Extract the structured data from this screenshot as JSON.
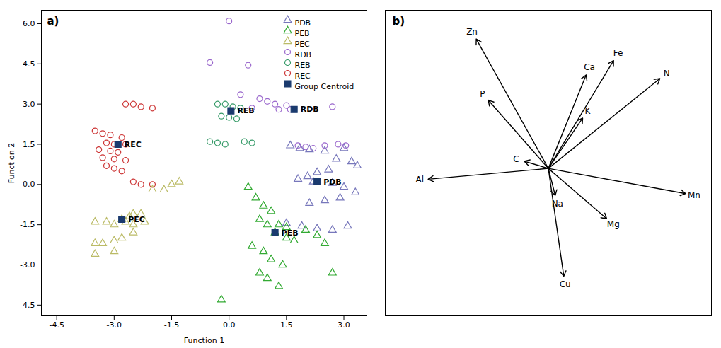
{
  "chart_data": [
    {
      "type": "scatter",
      "title": "a)",
      "xlabel": "Function 1",
      "ylabel": "Function 2",
      "xlim": [
        -4.9,
        3.6
      ],
      "ylim": [
        -4.9,
        6.5
      ],
      "xticks": [
        -4.5,
        {
          "value": -3,
          "label": "-3.0"
        },
        -1.5,
        {
          "value": 0,
          "label": "0.0"
        },
        1.5,
        {
          "value": 3,
          "label": "3.0"
        }
      ],
      "yticks": [
        -4.5,
        {
          "value": -3,
          "label": "-3.0"
        },
        -1.5,
        {
          "value": 0,
          "label": "0.0"
        },
        1.5,
        {
          "value": 3,
          "label": "3.0"
        },
        4.5,
        {
          "value": 6,
          "label": "6.0"
        }
      ],
      "legend": "upper right",
      "series": [
        {
          "name": "PDB",
          "color": "#7777bb",
          "marker": "triangle",
          "values": [
            [
              1.6,
              1.45
            ],
            [
              1.85,
              1.35
            ],
            [
              2.1,
              1.3
            ],
            [
              2.5,
              1.25
            ],
            [
              3.0,
              1.35
            ],
            [
              2.8,
              0.95
            ],
            [
              3.2,
              0.85
            ],
            [
              3.35,
              0.7
            ],
            [
              2.6,
              0.55
            ],
            [
              2.3,
              0.45
            ],
            [
              2.05,
              0.3
            ],
            [
              1.8,
              0.2
            ],
            [
              2.2,
              0.1
            ],
            [
              2.7,
              0.05
            ],
            [
              3.0,
              -0.1
            ],
            [
              3.3,
              -0.3
            ],
            [
              2.9,
              -0.5
            ],
            [
              2.5,
              -0.6
            ],
            [
              2.1,
              -0.7
            ],
            [
              1.5,
              -1.45
            ],
            [
              1.9,
              -1.55
            ],
            [
              2.3,
              -1.65
            ],
            [
              2.7,
              -1.7
            ],
            [
              3.1,
              -1.55
            ]
          ]
        },
        {
          "name": "PEB",
          "color": "#33aa33",
          "marker": "triangle",
          "values": [
            [
              0.5,
              -0.1
            ],
            [
              0.7,
              -0.5
            ],
            [
              0.9,
              -0.8
            ],
            [
              1.1,
              -1.0
            ],
            [
              0.8,
              -1.3
            ],
            [
              1.0,
              -1.5
            ],
            [
              1.3,
              -1.5
            ],
            [
              1.5,
              -1.6
            ],
            [
              1.2,
              -1.8
            ],
            [
              1.5,
              -2.0
            ],
            [
              1.7,
              -2.1
            ],
            [
              0.6,
              -2.3
            ],
            [
              0.9,
              -2.5
            ],
            [
              1.1,
              -2.8
            ],
            [
              1.4,
              -3.0
            ],
            [
              0.8,
              -3.3
            ],
            [
              1.0,
              -3.5
            ],
            [
              1.3,
              -3.8
            ],
            [
              -0.2,
              -4.3
            ],
            [
              2.0,
              -1.7
            ],
            [
              2.3,
              -1.9
            ],
            [
              2.5,
              -2.2
            ],
            [
              2.7,
              -3.3
            ]
          ]
        },
        {
          "name": "PEC",
          "color": "#bbbb66",
          "marker": "triangle",
          "values": [
            [
              -3.5,
              -2.2
            ],
            [
              -3.3,
              -2.2
            ],
            [
              -3.0,
              -2.1
            ],
            [
              -2.8,
              -1.3
            ],
            [
              -2.6,
              -1.2
            ],
            [
              -2.5,
              -1.1
            ],
            [
              -2.3,
              -1.1
            ],
            [
              -2.7,
              -1.4
            ],
            [
              -2.5,
              -1.5
            ],
            [
              -2.2,
              -1.4
            ],
            [
              -3.0,
              -1.5
            ],
            [
              -3.2,
              -1.4
            ],
            [
              -3.5,
              -1.4
            ],
            [
              -2.0,
              -0.2
            ],
            [
              -1.7,
              -0.2
            ],
            [
              -1.5,
              0.0
            ],
            [
              -1.3,
              0.1
            ],
            [
              -2.5,
              -1.8
            ],
            [
              -2.8,
              -2.0
            ],
            [
              -3.0,
              -2.5
            ],
            [
              -3.5,
              -2.6
            ]
          ]
        },
        {
          "name": "RDB",
          "color": "#9966cc",
          "marker": "circle",
          "values": [
            [
              0.0,
              6.1
            ],
            [
              -0.5,
              4.55
            ],
            [
              0.5,
              4.45
            ],
            [
              0.3,
              3.35
            ],
            [
              0.8,
              3.2
            ],
            [
              1.0,
              3.1
            ],
            [
              1.2,
              3.0
            ],
            [
              1.5,
              2.95
            ],
            [
              0.6,
              2.85
            ],
            [
              1.3,
              2.8
            ],
            [
              1.6,
              2.8
            ],
            [
              1.8,
              1.45
            ],
            [
              2.0,
              1.4
            ],
            [
              2.2,
              1.35
            ],
            [
              2.5,
              1.45
            ],
            [
              2.7,
              2.9
            ],
            [
              2.85,
              1.5
            ],
            [
              3.05,
              1.45
            ]
          ]
        },
        {
          "name": "REB",
          "color": "#339966",
          "marker": "circle",
          "values": [
            [
              -0.3,
              3.0
            ],
            [
              -0.1,
              3.0
            ],
            [
              0.1,
              2.9
            ],
            [
              0.3,
              2.85
            ],
            [
              -0.2,
              2.55
            ],
            [
              0.0,
              2.5
            ],
            [
              0.2,
              2.45
            ],
            [
              -0.5,
              1.6
            ],
            [
              -0.3,
              1.55
            ],
            [
              -0.1,
              1.5
            ],
            [
              0.4,
              1.6
            ],
            [
              0.6,
              1.55
            ]
          ]
        },
        {
          "name": "REC",
          "color": "#cc3333",
          "marker": "circle",
          "values": [
            [
              -3.5,
              2.0
            ],
            [
              -3.3,
              1.9
            ],
            [
              -3.1,
              1.85
            ],
            [
              -2.8,
              1.75
            ],
            [
              -3.2,
              1.55
            ],
            [
              -3.0,
              1.5
            ],
            [
              -2.7,
              1.5
            ],
            [
              -3.4,
              1.3
            ],
            [
              -3.1,
              1.25
            ],
            [
              -2.9,
              1.2
            ],
            [
              -3.3,
              1.0
            ],
            [
              -3.0,
              0.95
            ],
            [
              -2.7,
              0.9
            ],
            [
              -3.2,
              0.7
            ],
            [
              -3.0,
              0.6
            ],
            [
              -2.8,
              0.5
            ],
            [
              -2.5,
              0.1
            ],
            [
              -2.3,
              0.0
            ],
            [
              -2.0,
              0.0
            ],
            [
              -2.7,
              3.0
            ],
            [
              -2.5,
              3.0
            ],
            [
              -2.3,
              2.9
            ],
            [
              -2.0,
              2.85
            ]
          ]
        },
        {
          "name": "Group Centroid",
          "color": "#1a3a6e",
          "marker": "square",
          "values": [
            [
              2.3,
              0.1
            ],
            [
              1.2,
              -1.8
            ],
            [
              -2.8,
              -1.3
            ],
            [
              1.7,
              2.8
            ],
            [
              0.05,
              2.75
            ],
            [
              -2.9,
              1.5
            ]
          ]
        }
      ],
      "annotations": [
        {
          "text": "PDB",
          "x": 2.3,
          "y": 0.1
        },
        {
          "text": "PEB",
          "x": 1.2,
          "y": -1.8
        },
        {
          "text": "PEC",
          "x": -2.8,
          "y": -1.3
        },
        {
          "text": "RDB",
          "x": 1.7,
          "y": 2.8
        },
        {
          "text": "REB",
          "x": 0.05,
          "y": 2.75
        },
        {
          "text": "REC",
          "x": -2.9,
          "y": 1.5
        }
      ]
    },
    {
      "type": "vector",
      "title": "b)",
      "xlim": [
        -0.95,
        0.95
      ],
      "ylim": [
        -0.82,
        0.88
      ],
      "tick_labels": false,
      "origin": [
        0.0,
        0.0
      ],
      "vectors": [
        {
          "name": "Zn",
          "x": -0.42,
          "y": 0.72
        },
        {
          "name": "Fe",
          "x": 0.38,
          "y": 0.6
        },
        {
          "name": "N",
          "x": 0.65,
          "y": 0.5
        },
        {
          "name": "Ca",
          "x": 0.22,
          "y": 0.52
        },
        {
          "name": "P",
          "x": -0.35,
          "y": 0.38
        },
        {
          "name": "K",
          "x": 0.2,
          "y": 0.28
        },
        {
          "name": "C",
          "x": -0.14,
          "y": 0.04
        },
        {
          "name": "Na",
          "x": 0.04,
          "y": -0.15
        },
        {
          "name": "Al",
          "x": -0.7,
          "y": -0.06
        },
        {
          "name": "Mn",
          "x": 0.8,
          "y": -0.14
        },
        {
          "name": "Mg",
          "x": 0.34,
          "y": -0.28
        },
        {
          "name": "Cu",
          "x": 0.09,
          "y": -0.6
        }
      ]
    }
  ]
}
